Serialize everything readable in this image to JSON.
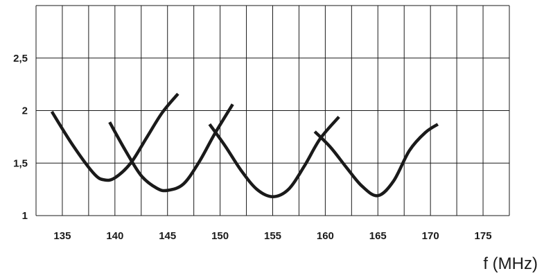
{
  "chart_data": {
    "type": "line",
    "title": "",
    "xlabel": "f (MHz)",
    "ylabel": "",
    "xlim": [
      132.5,
      177.5
    ],
    "ylim": [
      1,
      3
    ],
    "x_tick_labels": [
      "135",
      "140",
      "145",
      "150",
      "155",
      "160",
      "165",
      "170",
      "175"
    ],
    "y_tick_labels": [
      "1",
      "1,5",
      "2",
      "2,5"
    ],
    "grid": true,
    "series": [
      {
        "x": [
          134.0,
          136.0,
          138.0,
          139.0,
          140.0,
          141.5,
          143.0,
          144.5,
          146.0
        ],
        "y": [
          1.99,
          1.67,
          1.4,
          1.34,
          1.36,
          1.5,
          1.74,
          1.98,
          2.16
        ]
      },
      {
        "x": [
          139.5,
          141.0,
          142.5,
          144.0,
          145.0,
          146.5,
          148.0,
          149.5,
          151.2
        ],
        "y": [
          1.89,
          1.62,
          1.38,
          1.26,
          1.24,
          1.3,
          1.51,
          1.78,
          2.06
        ]
      },
      {
        "x": [
          149.0,
          150.5,
          152.0,
          153.5,
          155.0,
          156.5,
          158.0,
          159.5,
          161.3
        ],
        "y": [
          1.87,
          1.66,
          1.43,
          1.25,
          1.18,
          1.25,
          1.47,
          1.73,
          1.94
        ]
      },
      {
        "x": [
          159.0,
          160.5,
          162.0,
          163.5,
          165.0,
          166.5,
          168.0,
          169.5,
          170.7
        ],
        "y": [
          1.8,
          1.65,
          1.46,
          1.28,
          1.19,
          1.33,
          1.62,
          1.79,
          1.87
        ]
      }
    ]
  }
}
